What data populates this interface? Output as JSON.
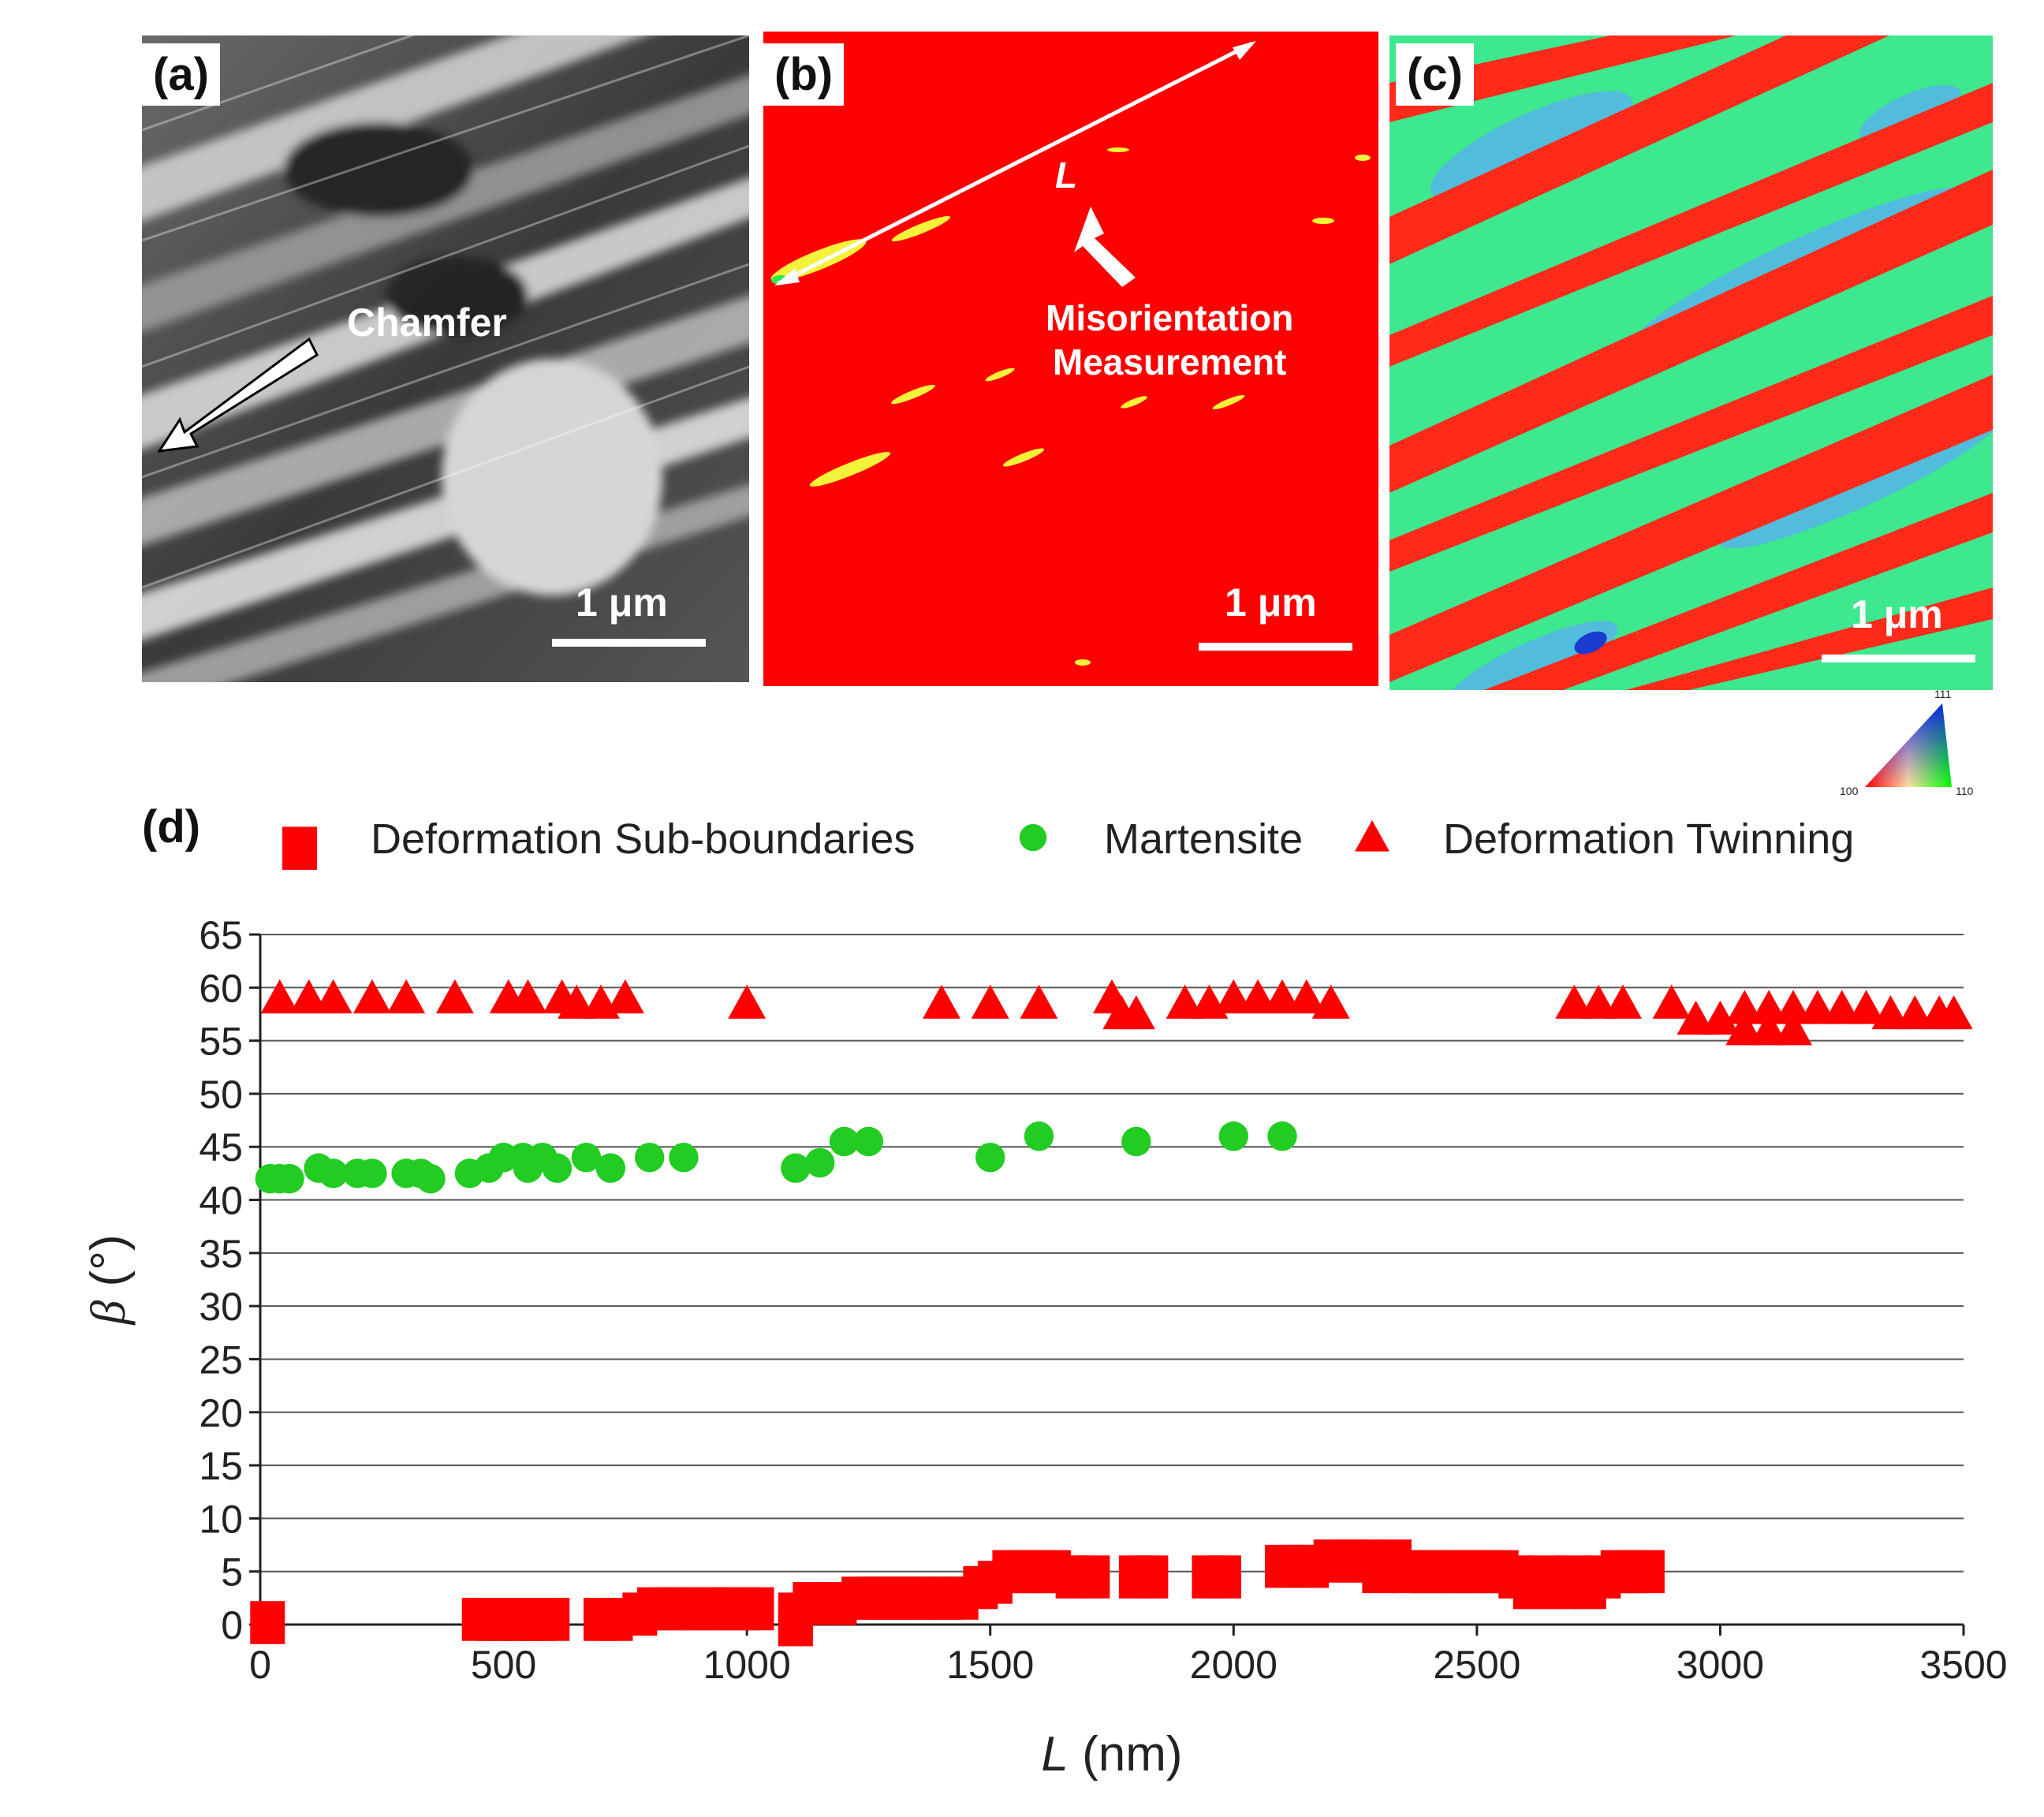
{
  "panels": {
    "a": {
      "label": "(a)",
      "annotation": "Chamfer",
      "scale": "1 μm"
    },
    "b": {
      "label": "(b)",
      "line_label": "L",
      "annotation_line1": "Misorientation",
      "annotation_line2": "Measurement",
      "scale": "1 μm"
    },
    "c": {
      "label": "(c)",
      "scale": "1 μm",
      "ipf_key": {
        "top": "111",
        "left": "100",
        "right": "110"
      }
    },
    "d": {
      "label": "(d)"
    }
  },
  "colors": {
    "sub_boundaries": "#ff0000",
    "martensite": "#22cc22",
    "twinning": "#ff0000",
    "ebsd_red": "#ff0000",
    "ebsd_green": "#2ee882",
    "ebsd_blue": "#4aa6e8"
  },
  "chart_data": {
    "type": "scatter",
    "xlabel_var": "L",
    "xlabel_unit": " (nm)",
    "ylabel_var": "β",
    "ylabel_unit": " (°)",
    "xlim": [
      0,
      3500
    ],
    "ylim": [
      0,
      65
    ],
    "xticks": [
      0,
      500,
      1000,
      1500,
      2000,
      2500,
      3000,
      3500
    ],
    "yticks": [
      0,
      5,
      10,
      15,
      20,
      25,
      30,
      35,
      40,
      45,
      50,
      55,
      60,
      65
    ],
    "grid": "horizontal",
    "legend_position": "top",
    "series": [
      {
        "name": "Deformation Sub-boundaries",
        "marker": "square",
        "color": "#ff0000",
        "points": [
          [
            15,
            1.2
          ],
          [
            450,
            1.5
          ],
          [
            480,
            1.5
          ],
          [
            510,
            1.5
          ],
          [
            540,
            1.5
          ],
          [
            570,
            1.5
          ],
          [
            600,
            1.5
          ],
          [
            700,
            1.5
          ],
          [
            730,
            1.5
          ],
          [
            780,
            2
          ],
          [
            810,
            2.5
          ],
          [
            840,
            2.5
          ],
          [
            870,
            2.5
          ],
          [
            900,
            2.5
          ],
          [
            930,
            2.5
          ],
          [
            960,
            2.5
          ],
          [
            990,
            2.5
          ],
          [
            1020,
            2.5
          ],
          [
            1100,
            2
          ],
          [
            1100,
            1
          ],
          [
            1130,
            3
          ],
          [
            1160,
            3
          ],
          [
            1190,
            3
          ],
          [
            1230,
            3.5
          ],
          [
            1260,
            3.5
          ],
          [
            1290,
            3.5
          ],
          [
            1320,
            3.5
          ],
          [
            1350,
            3.5
          ],
          [
            1380,
            3.5
          ],
          [
            1410,
            3.5
          ],
          [
            1440,
            3.5
          ],
          [
            1480,
            4.5
          ],
          [
            1510,
            5
          ],
          [
            1540,
            6
          ],
          [
            1570,
            6
          ],
          [
            1600,
            6
          ],
          [
            1630,
            6
          ],
          [
            1670,
            5.5
          ],
          [
            1710,
            5.5
          ],
          [
            1800,
            5.5
          ],
          [
            1830,
            5.5
          ],
          [
            1950,
            5.5
          ],
          [
            1980,
            5.5
          ],
          [
            2100,
            6.5
          ],
          [
            2130,
            6.5
          ],
          [
            2160,
            6.5
          ],
          [
            2200,
            7
          ],
          [
            2240,
            7
          ],
          [
            2270,
            7
          ],
          [
            2300,
            6
          ],
          [
            2330,
            7
          ],
          [
            2360,
            6
          ],
          [
            2400,
            6
          ],
          [
            2430,
            6
          ],
          [
            2460,
            6
          ],
          [
            2490,
            6
          ],
          [
            2520,
            6
          ],
          [
            2550,
            6
          ],
          [
            2580,
            5.5
          ],
          [
            2610,
            4.5
          ],
          [
            2640,
            5.5
          ],
          [
            2670,
            4.5
          ],
          [
            2700,
            5.5
          ],
          [
            2730,
            4.5
          ],
          [
            2760,
            5.5
          ],
          [
            2790,
            6
          ],
          [
            2820,
            6
          ],
          [
            2850,
            6
          ]
        ]
      },
      {
        "name": "Martensite",
        "marker": "circle",
        "color": "#22cc22",
        "points": [
          [
            20,
            42
          ],
          [
            40,
            42
          ],
          [
            60,
            42
          ],
          [
            120,
            43
          ],
          [
            150,
            42.5
          ],
          [
            200,
            42.5
          ],
          [
            230,
            42.5
          ],
          [
            300,
            42.5
          ],
          [
            330,
            42.5
          ],
          [
            350,
            42
          ],
          [
            430,
            42.5
          ],
          [
            470,
            43
          ],
          [
            500,
            44
          ],
          [
            540,
            44
          ],
          [
            550,
            43
          ],
          [
            580,
            44
          ],
          [
            610,
            43
          ],
          [
            670,
            44
          ],
          [
            720,
            43
          ],
          [
            800,
            44
          ],
          [
            870,
            44
          ],
          [
            1100,
            43
          ],
          [
            1150,
            43.5
          ],
          [
            1200,
            45.5
          ],
          [
            1250,
            45.5
          ],
          [
            1500,
            44
          ],
          [
            1600,
            46
          ],
          [
            1800,
            45.5
          ],
          [
            2000,
            46
          ],
          [
            2100,
            46
          ]
        ]
      },
      {
        "name": "Deformation Twinning",
        "marker": "triangle",
        "color": "#ff0000",
        "points": [
          [
            40,
            59
          ],
          [
            100,
            59
          ],
          [
            150,
            59
          ],
          [
            230,
            59
          ],
          [
            300,
            59
          ],
          [
            400,
            59
          ],
          [
            510,
            59
          ],
          [
            550,
            59
          ],
          [
            620,
            59
          ],
          [
            650,
            58.5
          ],
          [
            700,
            58.5
          ],
          [
            750,
            59
          ],
          [
            1000,
            58.5
          ],
          [
            1400,
            58.5
          ],
          [
            1500,
            58.5
          ],
          [
            1600,
            58.5
          ],
          [
            1750,
            59
          ],
          [
            1770,
            57.5
          ],
          [
            1800,
            57.5
          ],
          [
            1900,
            58.5
          ],
          [
            1950,
            58.5
          ],
          [
            2000,
            59
          ],
          [
            2050,
            59
          ],
          [
            2100,
            59
          ],
          [
            2150,
            59
          ],
          [
            2200,
            58.5
          ],
          [
            2700,
            58.5
          ],
          [
            2750,
            58.5
          ],
          [
            2800,
            58.5
          ],
          [
            2900,
            58.5
          ],
          [
            2950,
            57
          ],
          [
            3000,
            57
          ],
          [
            3050,
            56
          ],
          [
            3050,
            58
          ],
          [
            3100,
            56
          ],
          [
            3100,
            58
          ],
          [
            3150,
            56
          ],
          [
            3150,
            58
          ],
          [
            3200,
            58
          ],
          [
            3250,
            58
          ],
          [
            3300,
            58
          ],
          [
            3350,
            57.5
          ],
          [
            3400,
            57.5
          ],
          [
            3450,
            57.5
          ],
          [
            3480,
            57.5
          ]
        ]
      }
    ]
  }
}
